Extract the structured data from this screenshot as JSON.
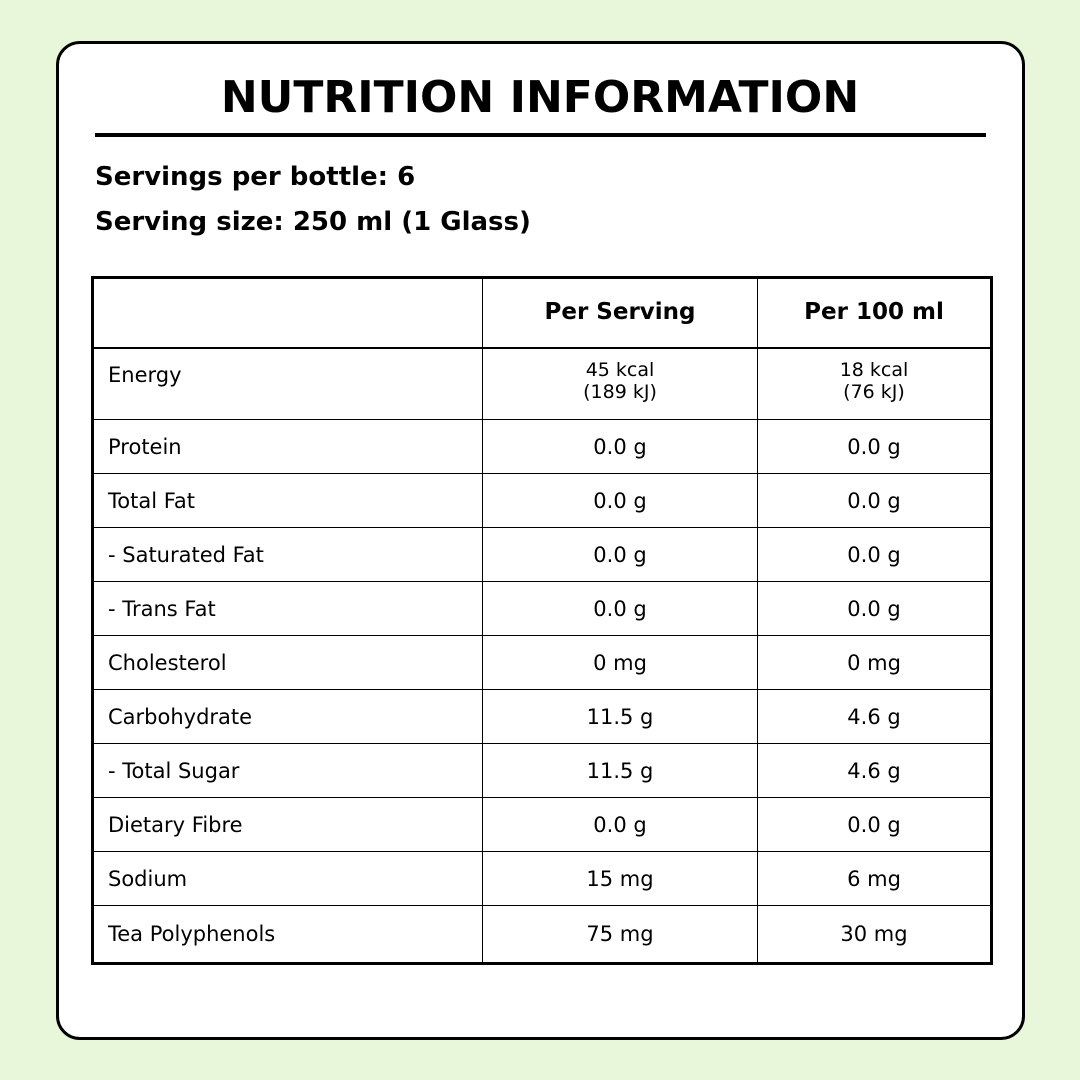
{
  "header": {
    "title": "NUTRITION INFORMATION",
    "servings": "Servings per bottle: 6",
    "serving_size": "Serving size: 250 ml (1 Glass)"
  },
  "table": {
    "columns": [
      "Per Serving",
      "Per 100 ml"
    ],
    "rows": [
      [
        "Energy",
        [
          "45 kcal",
          "(189 kJ)"
        ],
        [
          "18 kcal",
          "(76 kJ)"
        ]
      ],
      [
        "Protein",
        "0.0 g",
        "0.0 g"
      ],
      [
        "Total Fat",
        "0.0 g",
        "0.0 g"
      ],
      [
        "- Saturated Fat",
        "0.0 g",
        "0.0 g"
      ],
      [
        "- Trans Fat",
        "0.0 g",
        "0.0 g"
      ],
      [
        "Cholesterol",
        "0 mg",
        "0 mg"
      ],
      [
        "Carbohydrate",
        "11.5 g",
        "4.6 g"
      ],
      [
        "- Total Sugar",
        "11.5 g",
        "4.6 g"
      ],
      [
        "Dietary Fibre",
        "0.0 g",
        "0.0 g"
      ],
      [
        "Sodium",
        "15 mg",
        "6 mg"
      ],
      [
        "Tea Polyphenols",
        "75 mg",
        "30 mg"
      ]
    ]
  }
}
